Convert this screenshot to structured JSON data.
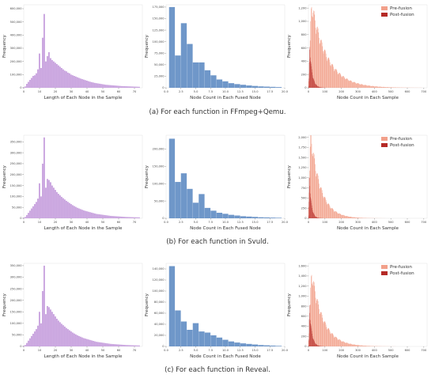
{
  "captions": [
    "(a) For each function in FFmpeg+Qemu.",
    "(b) For each function in Svuld.",
    "(c) For each function in Reveal."
  ],
  "chart_data": [
    {
      "type": "bar",
      "row": 0,
      "col": 0,
      "color": "#c8a2de",
      "xlabel": "Length of Each Node in the Sample",
      "ylabel": "Frequency",
      "xlim": [
        0,
        75
      ],
      "ylim": [
        0,
        630000
      ],
      "xticks": [
        0,
        10,
        20,
        30,
        40,
        50,
        60,
        70
      ],
      "xtick_labels": [
        "0",
        "10",
        "20",
        "30",
        "40",
        "50",
        "60",
        "70"
      ],
      "yticks": [
        0,
        100000,
        200000,
        300000,
        400000,
        500000,
        600000
      ],
      "ytick_labels": [
        "0",
        "100,000",
        "200,000",
        "300,000",
        "400,000",
        "500,000",
        "600,000"
      ],
      "x": [
        0,
        1,
        2,
        3,
        4,
        5,
        6,
        7,
        8,
        9,
        10,
        11,
        12,
        13,
        14,
        15,
        16,
        17,
        18,
        19,
        20,
        21,
        22,
        23,
        24,
        25,
        26,
        27,
        28,
        29,
        30,
        31,
        32,
        33,
        34,
        35,
        36,
        37,
        38,
        39,
        40,
        41,
        42,
        43,
        44,
        45,
        46,
        47,
        48,
        49,
        50,
        51,
        52,
        53,
        54,
        55,
        56,
        57,
        58,
        59,
        60,
        61,
        62,
        63,
        64,
        65,
        66,
        67,
        68,
        69,
        70,
        71,
        72,
        73
      ],
      "values": [
        5000,
        10000,
        30000,
        45000,
        60000,
        75000,
        90000,
        95000,
        110000,
        140000,
        260000,
        150000,
        380000,
        560000,
        200000,
        240000,
        270000,
        225000,
        210000,
        200000,
        190000,
        180000,
        170000,
        160000,
        150000,
        140000,
        130000,
        125000,
        115000,
        110000,
        100000,
        95000,
        90000,
        85000,
        80000,
        75000,
        70000,
        66000,
        62000,
        58000,
        54000,
        50000,
        46000,
        43000,
        40000,
        37000,
        35000,
        33000,
        31000,
        29000,
        27000,
        25000,
        23000,
        22000,
        21000,
        20000,
        19000,
        18000,
        17000,
        16000,
        15000,
        14000,
        13000,
        12500,
        12000,
        11500,
        11000,
        10500,
        10000,
        9500,
        9000,
        8500,
        8000,
        7500
      ]
    },
    {
      "type": "bar",
      "row": 0,
      "col": 1,
      "color": "#6f97c9",
      "xlabel": "Node Count in Each Fused Node",
      "ylabel": "Frequency",
      "xlim": [
        0,
        20
      ],
      "ylim": [
        0,
        180000
      ],
      "xticks": [
        0,
        2.5,
        5,
        7.5,
        10,
        12.5,
        15,
        17.5,
        20
      ],
      "xtick_labels": [
        "0.0",
        "2.5",
        "5.0",
        "7.5",
        "10.0",
        "12.5",
        "15.0",
        "17.5",
        "20.0"
      ],
      "yticks": [
        0,
        25000,
        50000,
        75000,
        100000,
        125000,
        150000,
        175000
      ],
      "ytick_labels": [
        "0",
        "25,000",
        "50,000",
        "75,000",
        "100,000",
        "125,000",
        "150,000",
        "175,000"
      ],
      "x": [
        1,
        2,
        3,
        4,
        5,
        6,
        7,
        8,
        9,
        10,
        11,
        12,
        13,
        14,
        15,
        16,
        17,
        18,
        19
      ],
      "values": [
        175000,
        70000,
        140000,
        95000,
        55000,
        55000,
        38000,
        27000,
        18000,
        14000,
        10000,
        8000,
        6500,
        5000,
        4000,
        3000,
        2500,
        2000,
        1500
      ]
    },
    {
      "type": "histogram_overlay",
      "row": 0,
      "col": 2,
      "xlabel": "Node Count in Each Sample",
      "ylabel": "Frequency",
      "xlim": [
        0,
        720
      ],
      "ylim": [
        0,
        1250
      ],
      "xticks": [
        0,
        100,
        200,
        300,
        400,
        500,
        600,
        700
      ],
      "xtick_labels": [
        "0",
        "100",
        "200",
        "300",
        "400",
        "500",
        "600",
        "700"
      ],
      "yticks": [
        0,
        200,
        400,
        600,
        800,
        1000,
        1200
      ],
      "ytick_labels": [
        "0",
        "200",
        "400",
        "600",
        "800",
        "1,000",
        "1,200"
      ],
      "series": [
        {
          "name": "Pre-fusion",
          "color": "#f2a08a",
          "peak": 1200,
          "peak_x": 20,
          "decay": 95,
          "rise": 12
        },
        {
          "name": "Post-fusion",
          "color": "#b52a26",
          "peak": 600,
          "peak_x": 8,
          "decay": 15,
          "rise": 4
        }
      ]
    },
    {
      "type": "bar",
      "row": 1,
      "col": 0,
      "color": "#c8a2de",
      "xlabel": "Length of Each Node in the Sample",
      "ylabel": "Frequency",
      "xlim": [
        0,
        75
      ],
      "ylim": [
        0,
        380000
      ],
      "xticks": [
        0,
        10,
        20,
        30,
        40,
        50,
        60,
        70
      ],
      "xtick_labels": [
        "0",
        "10",
        "20",
        "30",
        "40",
        "50",
        "60",
        "70"
      ],
      "yticks": [
        0,
        50000,
        100000,
        150000,
        200000,
        250000,
        300000,
        350000
      ],
      "ytick_labels": [
        "0",
        "50,000",
        "100,000",
        "150,000",
        "200,000",
        "250,000",
        "300,000",
        "350,000"
      ],
      "x": [
        0,
        1,
        2,
        3,
        4,
        5,
        6,
        7,
        8,
        9,
        10,
        11,
        12,
        13,
        14,
        15,
        16,
        17,
        18,
        19,
        20,
        21,
        22,
        23,
        24,
        25,
        26,
        27,
        28,
        29,
        30,
        31,
        32,
        33,
        34,
        35,
        36,
        37,
        38,
        39,
        40,
        41,
        42,
        43,
        44,
        45,
        46,
        47,
        48,
        49,
        50,
        51,
        52,
        53,
        54,
        55,
        56,
        57,
        58,
        59,
        60,
        61,
        62,
        63,
        64,
        65,
        66,
        67,
        68,
        69,
        70,
        71,
        72,
        73
      ],
      "values": [
        3000,
        6000,
        15000,
        25000,
        35000,
        45000,
        55000,
        65000,
        75000,
        90000,
        160000,
        100000,
        250000,
        370000,
        140000,
        180000,
        175000,
        165000,
        150000,
        140000,
        130000,
        120000,
        112000,
        105000,
        98000,
        92000,
        86000,
        80000,
        75000,
        70000,
        65000,
        60000,
        56000,
        52000,
        48000,
        45000,
        42000,
        39000,
        36000,
        34000,
        32000,
        30000,
        28000,
        26000,
        24000,
        22000,
        20000,
        19000,
        18000,
        17000,
        16000,
        15000,
        14000,
        13000,
        12000,
        11000,
        10500,
        10000,
        9500,
        9000,
        8500,
        8000,
        7500,
        7000,
        6500,
        6000,
        5800,
        5500,
        5200,
        5000,
        4800,
        4500,
        4200,
        4000
      ]
    },
    {
      "type": "bar",
      "row": 1,
      "col": 1,
      "color": "#6f97c9",
      "xlabel": "Node Count in Each Fused Node",
      "ylabel": "Frequency",
      "xlim": [
        0,
        20
      ],
      "ylim": [
        0,
        240000
      ],
      "xticks": [
        0,
        2.5,
        5,
        7.5,
        10,
        12.5,
        15,
        17.5,
        20
      ],
      "xtick_labels": [
        "0.0",
        "2.5",
        "5.0",
        "7.5",
        "10.0",
        "12.5",
        "15.0",
        "17.5",
        "20.0"
      ],
      "yticks": [
        0,
        50000,
        100000,
        150000,
        200000
      ],
      "ytick_labels": [
        "0",
        "50,000",
        "100,000",
        "150,000",
        "200,000"
      ],
      "x": [
        1,
        2,
        3,
        4,
        5,
        6,
        7,
        8,
        9,
        10,
        11,
        12,
        13,
        14,
        15,
        16,
        17,
        18,
        19
      ],
      "values": [
        230000,
        105000,
        130000,
        85000,
        45000,
        70000,
        30000,
        22000,
        16000,
        13000,
        10000,
        8000,
        6000,
        5000,
        4000,
        3000,
        2500,
        2000,
        1500
      ]
    },
    {
      "type": "histogram_overlay",
      "row": 1,
      "col": 2,
      "xlabel": "Node Count in Each Sample",
      "ylabel": "Frequency",
      "xlim": [
        0,
        720
      ],
      "ylim": [
        0,
        2050
      ],
      "xticks": [
        0,
        100,
        200,
        300,
        400,
        500,
        600,
        700
      ],
      "xtick_labels": [
        "0",
        "100",
        "200",
        "300",
        "400",
        "500",
        "600",
        "700"
      ],
      "yticks": [
        0,
        250,
        500,
        750,
        1000,
        1250,
        1500,
        1750,
        2000
      ],
      "ytick_labels": [
        "0",
        "250",
        "500",
        "750",
        "1,000",
        "1,250",
        "1,500",
        "1,750",
        "2,000"
      ],
      "series": [
        {
          "name": "Pre-fusion",
          "color": "#f2a08a",
          "peak": 1950,
          "peak_x": 15,
          "decay": 60,
          "rise": 10
        },
        {
          "name": "Post-fusion",
          "color": "#b52a26",
          "peak": 1000,
          "peak_x": 6,
          "decay": 12,
          "rise": 3
        }
      ]
    },
    {
      "type": "bar",
      "row": 2,
      "col": 0,
      "color": "#c8a2de",
      "xlabel": "Length of Each Node in the Sample",
      "ylabel": "Frequency",
      "xlim": [
        0,
        75
      ],
      "ylim": [
        0,
        360000
      ],
      "xticks": [
        0,
        10,
        20,
        30,
        40,
        50,
        60,
        70
      ],
      "xtick_labels": [
        "0",
        "10",
        "20",
        "30",
        "40",
        "50",
        "60",
        "70"
      ],
      "yticks": [
        0,
        50000,
        100000,
        150000,
        200000,
        250000,
        300000,
        350000
      ],
      "ytick_labels": [
        "0",
        "50,000",
        "100,000",
        "150,000",
        "200,000",
        "250,000",
        "300,000",
        "350,000"
      ],
      "x": [
        0,
        1,
        2,
        3,
        4,
        5,
        6,
        7,
        8,
        9,
        10,
        11,
        12,
        13,
        14,
        15,
        16,
        17,
        18,
        19,
        20,
        21,
        22,
        23,
        24,
        25,
        26,
        27,
        28,
        29,
        30,
        31,
        32,
        33,
        34,
        35,
        36,
        37,
        38,
        39,
        40,
        41,
        42,
        43,
        44,
        45,
        46,
        47,
        48,
        49,
        50,
        51,
        52,
        53,
        54,
        55,
        56,
        57,
        58,
        59,
        60,
        61,
        62,
        63,
        64,
        65,
        66,
        67,
        68,
        69,
        70,
        71,
        72,
        73
      ],
      "values": [
        3000,
        6000,
        15000,
        25000,
        35000,
        45000,
        55000,
        65000,
        75000,
        90000,
        150000,
        100000,
        240000,
        350000,
        140000,
        175000,
        170000,
        160000,
        150000,
        140000,
        130000,
        120000,
        112000,
        105000,
        98000,
        92000,
        86000,
        80000,
        75000,
        70000,
        65000,
        60000,
        56000,
        52000,
        48000,
        45000,
        42000,
        39000,
        36000,
        34000,
        32000,
        30000,
        28000,
        26000,
        24000,
        22000,
        20000,
        19000,
        18000,
        17000,
        16000,
        15000,
        14000,
        13000,
        12000,
        11000,
        10500,
        10000,
        9500,
        9000,
        8500,
        8000,
        7500,
        7000,
        6500,
        6000,
        5800,
        5500,
        5200,
        5000,
        4800,
        4500,
        4200,
        4000
      ]
    },
    {
      "type": "bar",
      "row": 2,
      "col": 1,
      "color": "#6f97c9",
      "xlabel": "Node Count in Each Fused Node",
      "ylabel": "Frequency",
      "xlim": [
        0,
        20
      ],
      "ylim": [
        0,
        150000
      ],
      "xticks": [
        0,
        2.5,
        5,
        7.5,
        10,
        12.5,
        15,
        17.5,
        20
      ],
      "xtick_labels": [
        "0.0",
        "2.5",
        "5.0",
        "7.5",
        "10.0",
        "12.5",
        "15.0",
        "17.5",
        "20.0"
      ],
      "yticks": [
        0,
        20000,
        40000,
        60000,
        80000,
        100000,
        120000,
        140000
      ],
      "ytick_labels": [
        "0",
        "20,000",
        "40,000",
        "60,000",
        "80,000",
        "100,000",
        "120,000",
        "140,000"
      ],
      "x": [
        1,
        2,
        3,
        4,
        5,
        6,
        7,
        8,
        9,
        10,
        11,
        12,
        13,
        14,
        15,
        16,
        17,
        18,
        19
      ],
      "values": [
        145000,
        65000,
        45000,
        30000,
        42000,
        27000,
        25000,
        20000,
        16000,
        12000,
        9000,
        7000,
        5500,
        4500,
        3500,
        2500,
        2000,
        1500,
        1000
      ]
    },
    {
      "type": "histogram_overlay",
      "row": 2,
      "col": 2,
      "xlabel": "Node Count in Each Sample",
      "ylabel": "Frequency",
      "xlim": [
        0,
        720
      ],
      "ylim": [
        0,
        1650
      ],
      "xticks": [
        0,
        100,
        200,
        300,
        400,
        500,
        600,
        700
      ],
      "xtick_labels": [
        "0",
        "100",
        "200",
        "300",
        "400",
        "500",
        "600",
        "700"
      ],
      "yticks": [
        0,
        200,
        400,
        600,
        800,
        1000,
        1200,
        1400,
        1600
      ],
      "ytick_labels": [
        "0",
        "200",
        "400",
        "600",
        "800",
        "1,000",
        "1,200",
        "1,400",
        "1,600"
      ],
      "series": [
        {
          "name": "Pre-fusion",
          "color": "#f2a08a",
          "peak": 1400,
          "peak_x": 20,
          "decay": 70,
          "rise": 12
        },
        {
          "name": "Post-fusion",
          "color": "#b52a26",
          "peak": 750,
          "peak_x": 7,
          "decay": 14,
          "rise": 3
        }
      ]
    }
  ]
}
